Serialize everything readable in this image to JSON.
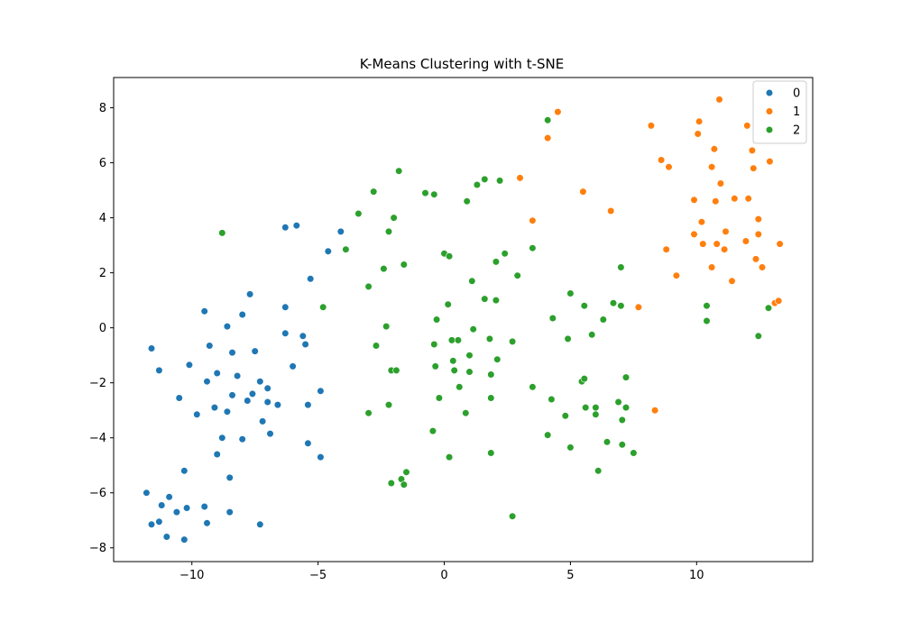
{
  "chart_data": {
    "type": "scatter",
    "title": "K-Means Clustering with t-SNE",
    "xlabel": "",
    "ylabel": "",
    "xlim": [
      -13.1,
      14.6
    ],
    "ylim": [
      -8.5,
      9.1
    ],
    "xticks": [
      -10,
      -5,
      0,
      5,
      10
    ],
    "xtick_labels": [
      "−10",
      "−5",
      "0",
      "5",
      "10"
    ],
    "yticks": [
      -8,
      -6,
      -4,
      -2,
      0,
      2,
      4,
      6,
      8
    ],
    "ytick_labels": [
      "−8",
      "−6",
      "−4",
      "−2",
      "0",
      "2",
      "4",
      "6",
      "8"
    ],
    "grid": false,
    "legend": {
      "placement": "top-right",
      "entries": [
        "0",
        "1",
        "2"
      ]
    },
    "series": [
      {
        "name": "0",
        "color": "#1f77b4",
        "points": [
          [
            -11.8,
            -6.0
          ],
          [
            -11.6,
            -7.15
          ],
          [
            -11.3,
            -7.05
          ],
          [
            -11.2,
            -6.45
          ],
          [
            -11.0,
            -7.6
          ],
          [
            -10.9,
            -6.15
          ],
          [
            -10.6,
            -6.7
          ],
          [
            -10.3,
            -7.7
          ],
          [
            -10.2,
            -6.55
          ],
          [
            -10.3,
            -5.2
          ],
          [
            -9.5,
            -6.5
          ],
          [
            -9.4,
            -7.1
          ],
          [
            -8.5,
            -6.7
          ],
          [
            -8.5,
            -5.45
          ],
          [
            -7.3,
            -7.15
          ],
          [
            -9.0,
            -4.6
          ],
          [
            -8.8,
            -4.0
          ],
          [
            -8.0,
            -4.05
          ],
          [
            -11.6,
            -0.75
          ],
          [
            -11.3,
            -1.55
          ],
          [
            -10.1,
            -1.35
          ],
          [
            -9.5,
            0.6
          ],
          [
            -9.3,
            -0.65
          ],
          [
            -9.4,
            -1.95
          ],
          [
            -9.0,
            -1.65
          ],
          [
            -8.6,
            0.05
          ],
          [
            -8.4,
            -0.9
          ],
          [
            -8.2,
            -1.75
          ],
          [
            -8.0,
            0.48
          ],
          [
            -7.7,
            1.22
          ],
          [
            -7.5,
            -0.85
          ],
          [
            -7.6,
            -2.4
          ],
          [
            -7.8,
            -2.65
          ],
          [
            -7.3,
            -1.95
          ],
          [
            -7.0,
            -2.2
          ],
          [
            -7.0,
            -2.7
          ],
          [
            -6.6,
            -2.8
          ],
          [
            -7.2,
            -3.4
          ],
          [
            -6.9,
            -3.85
          ],
          [
            -8.6,
            -3.05
          ],
          [
            -8.4,
            -2.45
          ],
          [
            -9.1,
            -2.9
          ],
          [
            -9.8,
            -3.15
          ],
          [
            -10.5,
            -2.55
          ],
          [
            -6.3,
            0.75
          ],
          [
            -6.3,
            -0.2
          ],
          [
            -6.0,
            -1.4
          ],
          [
            -5.6,
            -0.3
          ],
          [
            -5.5,
            -0.6
          ],
          [
            -5.3,
            1.78
          ],
          [
            -5.4,
            -2.8
          ],
          [
            -5.4,
            -4.2
          ],
          [
            -4.9,
            -2.3
          ],
          [
            -4.9,
            -4.7
          ],
          [
            -4.8,
            0.75
          ],
          [
            -4.6,
            2.78
          ],
          [
            -4.1,
            3.5
          ],
          [
            -6.3,
            3.65
          ],
          [
            -5.85,
            3.72
          ]
        ]
      },
      {
        "name": "1",
        "color": "#ff7f0e",
        "points": [
          [
            4.1,
            6.9
          ],
          [
            4.5,
            7.85
          ],
          [
            5.5,
            4.95
          ],
          [
            6.6,
            4.25
          ],
          [
            3.5,
            3.9
          ],
          [
            3.0,
            5.45
          ],
          [
            7.7,
            0.75
          ],
          [
            8.35,
            -3.0
          ],
          [
            8.2,
            7.35
          ],
          [
            8.6,
            6.1
          ],
          [
            8.9,
            5.85
          ],
          [
            8.8,
            2.85
          ],
          [
            9.2,
            1.9
          ],
          [
            9.9,
            4.65
          ],
          [
            9.9,
            3.4
          ],
          [
            10.05,
            7.05
          ],
          [
            10.1,
            7.5
          ],
          [
            10.2,
            3.85
          ],
          [
            10.25,
            3.05
          ],
          [
            10.6,
            5.85
          ],
          [
            10.7,
            6.5
          ],
          [
            10.75,
            4.6
          ],
          [
            10.8,
            3.05
          ],
          [
            10.9,
            8.3
          ],
          [
            10.95,
            5.25
          ],
          [
            11.1,
            2.85
          ],
          [
            11.15,
            3.5
          ],
          [
            10.6,
            2.2
          ],
          [
            11.4,
            1.7
          ],
          [
            11.5,
            4.7
          ],
          [
            11.95,
            3.15
          ],
          [
            12.05,
            4.7
          ],
          [
            12.0,
            7.35
          ],
          [
            12.2,
            6.45
          ],
          [
            12.25,
            5.8
          ],
          [
            12.35,
            2.5
          ],
          [
            12.45,
            3.4
          ],
          [
            12.45,
            3.95
          ],
          [
            12.6,
            2.2
          ],
          [
            12.9,
            6.05
          ],
          [
            13.1,
            0.9
          ],
          [
            13.3,
            3.05
          ],
          [
            13.25,
            0.98
          ]
        ]
      },
      {
        "name": "2",
        "color": "#2ca02c",
        "points": [
          [
            -8.8,
            3.45
          ],
          [
            -4.8,
            0.75
          ],
          [
            -3.9,
            2.85
          ],
          [
            -3.4,
            4.15
          ],
          [
            -2.8,
            4.95
          ],
          [
            -3.0,
            1.5
          ],
          [
            -2.7,
            -0.65
          ],
          [
            -3.0,
            -3.1
          ],
          [
            -2.4,
            2.15
          ],
          [
            -2.2,
            3.5
          ],
          [
            -2.3,
            0.05
          ],
          [
            -2.2,
            -2.8
          ],
          [
            -2.1,
            -1.55
          ],
          [
            -1.9,
            -1.55
          ],
          [
            -2.0,
            4.0
          ],
          [
            -1.8,
            5.7
          ],
          [
            -1.6,
            2.3
          ],
          [
            -1.7,
            -5.5
          ],
          [
            -1.6,
            -5.7
          ],
          [
            -1.5,
            -5.25
          ],
          [
            -2.1,
            -5.65
          ],
          [
            -0.75,
            4.9
          ],
          [
            -0.4,
            4.85
          ],
          [
            -0.4,
            -0.6
          ],
          [
            -0.3,
            0.3
          ],
          [
            -0.35,
            -1.4
          ],
          [
            -0.2,
            -2.55
          ],
          [
            0.0,
            2.7
          ],
          [
            -0.45,
            -3.75
          ],
          [
            0.15,
            0.85
          ],
          [
            0.2,
            2.6
          ],
          [
            0.3,
            -0.45
          ],
          [
            0.35,
            -1.2
          ],
          [
            0.4,
            -1.55
          ],
          [
            0.2,
            -4.7
          ],
          [
            0.55,
            -0.45
          ],
          [
            0.6,
            -2.15
          ],
          [
            0.9,
            4.6
          ],
          [
            0.85,
            -3.1
          ],
          [
            1.0,
            -1.6
          ],
          [
            1.0,
            -1.0
          ],
          [
            1.1,
            1.7
          ],
          [
            1.15,
            -0.05
          ],
          [
            1.3,
            5.2
          ],
          [
            1.6,
            1.05
          ],
          [
            1.6,
            5.4
          ],
          [
            1.8,
            -0.4
          ],
          [
            1.85,
            -1.7
          ],
          [
            1.85,
            -2.55
          ],
          [
            2.05,
            2.4
          ],
          [
            2.05,
            1.0
          ],
          [
            2.1,
            -1.15
          ],
          [
            2.2,
            5.35
          ],
          [
            2.4,
            2.7
          ],
          [
            1.85,
            -4.55
          ],
          [
            2.7,
            -0.5
          ],
          [
            2.9,
            1.9
          ],
          [
            3.5,
            2.9
          ],
          [
            3.5,
            -2.15
          ],
          [
            2.7,
            -6.85
          ],
          [
            4.1,
            7.55
          ],
          [
            4.25,
            -2.6
          ],
          [
            4.3,
            0.35
          ],
          [
            4.1,
            -3.9
          ],
          [
            4.8,
            -3.2
          ],
          [
            4.9,
            -0.4
          ],
          [
            5.0,
            1.25
          ],
          [
            5.0,
            -4.35
          ],
          [
            5.45,
            -1.95
          ],
          [
            5.55,
            -1.85
          ],
          [
            5.55,
            0.8
          ],
          [
            5.6,
            -2.9
          ],
          [
            5.85,
            -0.25
          ],
          [
            6.0,
            -2.9
          ],
          [
            6.0,
            -3.15
          ],
          [
            6.1,
            -5.2
          ],
          [
            6.3,
            0.3
          ],
          [
            6.45,
            -4.15
          ],
          [
            6.7,
            0.9
          ],
          [
            6.9,
            -2.7
          ],
          [
            7.0,
            0.8
          ],
          [
            7.0,
            2.2
          ],
          [
            7.05,
            -3.35
          ],
          [
            7.05,
            -4.25
          ],
          [
            7.2,
            -1.8
          ],
          [
            7.2,
            -2.9
          ],
          [
            7.5,
            -4.55
          ],
          [
            10.4,
            0.8
          ],
          [
            10.4,
            0.25
          ],
          [
            12.45,
            -0.3
          ],
          [
            12.85,
            0.72
          ]
        ]
      }
    ]
  }
}
